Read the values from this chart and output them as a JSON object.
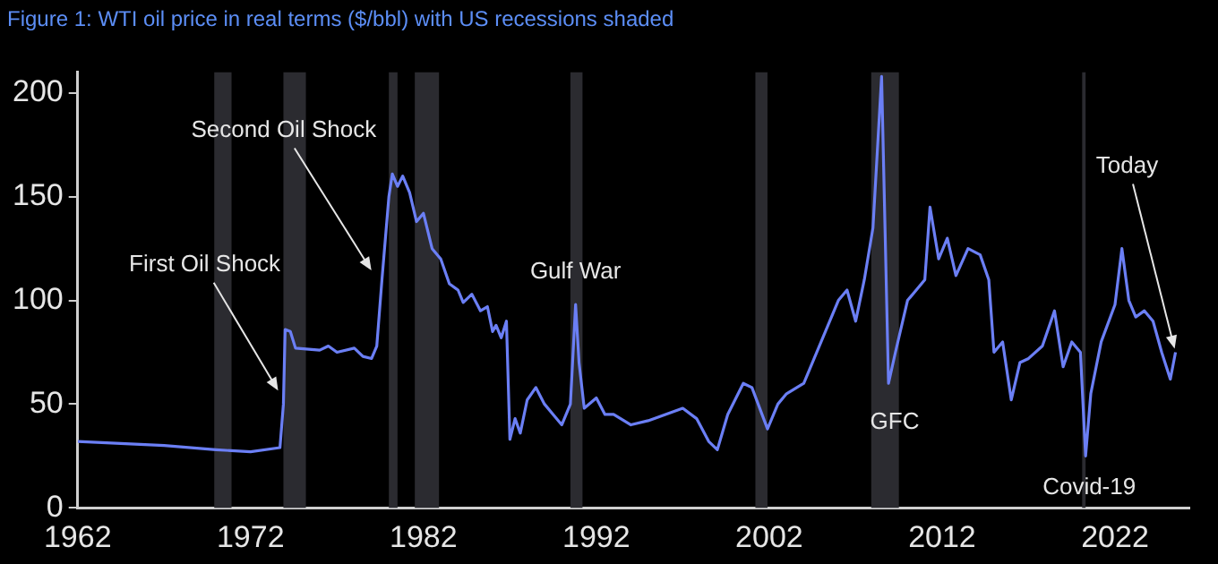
{
  "chart_data": {
    "type": "line",
    "title": "Figure 1: WTI oil price in real terms ($/bbl) with US recessions shaded",
    "x": [
      1962,
      1967,
      1970,
      1972,
      1973.7,
      1973.9,
      1974.0,
      1974.3,
      1974.6,
      1976,
      1976.5,
      1977,
      1978,
      1978.5,
      1979.0,
      1979.3,
      1979.6,
      1980.0,
      1980.2,
      1980.5,
      1980.8,
      1981.2,
      1981.6,
      1982,
      1982.5,
      1983,
      1983.5,
      1984,
      1984.3,
      1984.8,
      1985.3,
      1985.7,
      1986,
      1986.2,
      1986.5,
      1986.8,
      1987.0,
      1987.3,
      1987.6,
      1988,
      1988.5,
      1989,
      1989.5,
      1990,
      1990.5,
      1990.8,
      1991.0,
      1991.3,
      1992,
      1992.5,
      1993,
      1994,
      1995,
      1996,
      1997,
      1997.8,
      1998.5,
      1999,
      1999.6,
      2000.5,
      2001,
      2001.9,
      2002.5,
      2003,
      2004,
      2005,
      2006,
      2006.5,
      2007,
      2007.5,
      2008.0,
      2008.5,
      2008.9,
      2009.3,
      2010,
      2011,
      2011.3,
      2011.8,
      2012.3,
      2012.8,
      2013.5,
      2014.2,
      2014.7,
      2015,
      2015.5,
      2016,
      2016.5,
      2017,
      2017.8,
      2018.5,
      2019,
      2019.5,
      2020.0,
      2020.3,
      2020.6,
      2021.2,
      2022.0,
      2022.4,
      2022.8,
      2023.2,
      2023.7,
      2024.2,
      2024.7,
      2025.2,
      2025.5
    ],
    "series": [
      {
        "color": "#6b7ff5",
        "values": [
          32,
          30,
          28,
          27,
          29,
          50,
          86,
          85,
          77,
          76,
          78,
          75,
          77,
          73,
          72,
          78,
          110,
          150,
          161,
          155,
          160,
          152,
          138,
          142,
          125,
          120,
          108,
          105,
          99,
          103,
          95,
          97,
          85,
          88,
          82,
          90,
          33,
          43,
          36,
          52,
          58,
          50,
          45,
          40,
          50,
          98,
          70,
          48,
          53,
          45,
          45,
          40,
          42,
          45,
          48,
          43,
          32,
          28,
          45,
          60,
          58,
          38,
          50,
          55,
          60,
          80,
          100,
          105,
          90,
          110,
          135,
          208,
          60,
          75,
          100,
          110,
          145,
          120,
          130,
          112,
          125,
          122,
          110,
          75,
          80,
          52,
          70,
          72,
          78,
          95,
          68,
          80,
          75,
          25,
          55,
          80,
          98,
          125,
          100,
          92,
          95,
          90,
          75,
          62,
          75
        ]
      }
    ],
    "xlim": [
      1962,
      2026.3
    ],
    "xticks": [
      1962,
      1972,
      1982,
      1992,
      2002,
      2012,
      2022
    ],
    "ylim": [
      0,
      210
    ],
    "yticks": [
      0,
      50,
      100,
      150,
      200
    ],
    "bands": [
      {
        "axis": "x",
        "from": 1969.9,
        "to": 1970.9,
        "color": "#2b2b30"
      },
      {
        "axis": "x",
        "from": 1973.9,
        "to": 1975.2,
        "color": "#2b2b30"
      },
      {
        "axis": "x",
        "from": 1980.0,
        "to": 1980.5,
        "color": "#2b2b30"
      },
      {
        "axis": "x",
        "from": 1981.5,
        "to": 1982.9,
        "color": "#2b2b30"
      },
      {
        "axis": "x",
        "from": 1990.5,
        "to": 1991.2,
        "color": "#2b2b30"
      },
      {
        "axis": "x",
        "from": 2001.2,
        "to": 2001.9,
        "color": "#2b2b30"
      },
      {
        "axis": "x",
        "from": 2007.9,
        "to": 2009.5,
        "color": "#2b2b30"
      },
      {
        "axis": "x",
        "from": 2020.1,
        "to": 2020.3,
        "color": "#2b2b30"
      }
    ],
    "annotations": [
      {
        "text": "First Oil Shock",
        "x": 1973.7,
        "y": 55
      },
      {
        "text": "Second Oil Shock",
        "x": 1979.1,
        "y": 113
      },
      {
        "text": "Gulf War",
        "x": 1990.8,
        "y": 98
      },
      {
        "text": "GFC",
        "x": 2009.05,
        "y": 60
      },
      {
        "text": "Covid-19",
        "x": 2020.3,
        "y": 25
      },
      {
        "text": "Today",
        "x": 2025.5,
        "y": 75
      }
    ],
    "grid": false,
    "legend": false,
    "marker": "none",
    "line_style": "solid"
  }
}
